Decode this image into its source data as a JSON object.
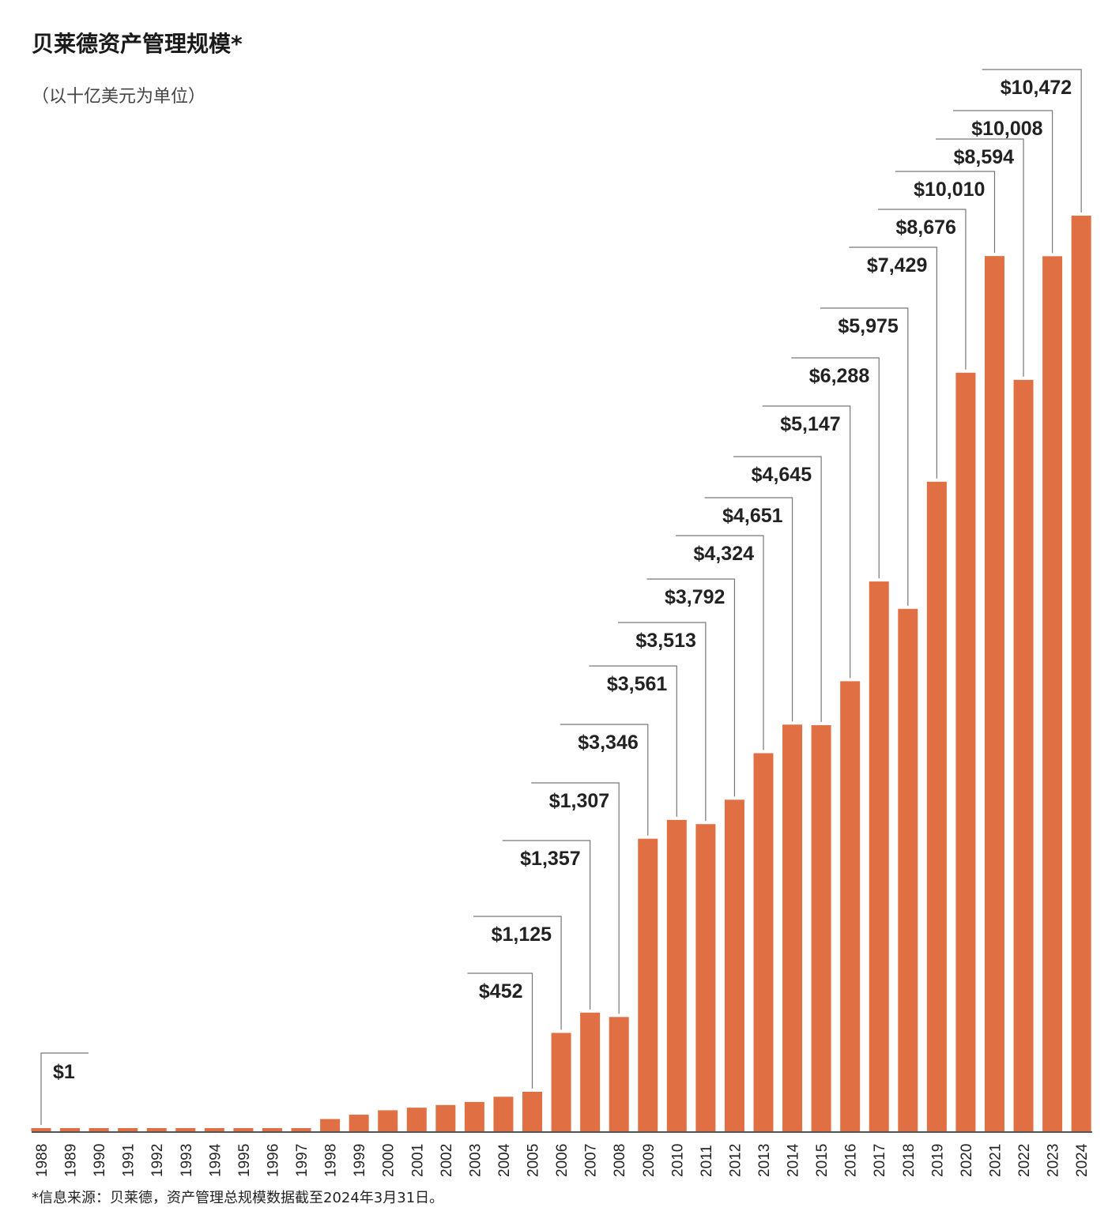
{
  "chart_data": {
    "type": "bar",
    "title": "贝莱德资产管理规模*",
    "subtitle": "（以十亿美元为单位）",
    "footnote": "*信息来源：贝莱德，资产管理总规模数据截至2024年3月31日。",
    "categories": [
      "1988",
      "1989",
      "1990",
      "1991",
      "1992",
      "1993",
      "1994",
      "1995",
      "1996",
      "1997",
      "1998",
      "1999",
      "2000",
      "2001",
      "2002",
      "2003",
      "2004",
      "2005",
      "2006",
      "2007",
      "2008",
      "2009",
      "2010",
      "2011",
      "2012",
      "2013",
      "2014",
      "2015",
      "2016",
      "2017",
      "2018",
      "2019",
      "2020",
      "2021",
      "2022",
      "2023",
      "2024"
    ],
    "values": [
      1,
      1,
      1,
      1,
      1,
      1,
      1,
      1,
      1,
      1,
      140,
      190,
      240,
      270,
      300,
      335,
      395,
      452,
      1125,
      1357,
      1307,
      3346,
      3561,
      3513,
      3792,
      4324,
      4651,
      4645,
      5147,
      6288,
      5975,
      7429,
      8676,
      10010,
      8594,
      10008,
      10472
    ],
    "data_labels": {
      "1988": "$1",
      "2005": "$452",
      "2006": "$1,125",
      "2007": "$1,357",
      "2008": "$1,307",
      "2009": "$3,346",
      "2010": "$3,561",
      "2011": "$3,513",
      "2012": "$3,792",
      "2013": "$4,324",
      "2014": "$4,651",
      "2015": "$4,645",
      "2016": "$5,147",
      "2017": "$6,288",
      "2018": "$5,975",
      "2019": "$7,429",
      "2020": "$8,676",
      "2021": "$10,010",
      "2022": "$8,594",
      "2023": "$10,008",
      "2024": "$10,472"
    },
    "ylim": [
      0,
      10472
    ],
    "grid": false,
    "bar_color": "#E07044"
  }
}
